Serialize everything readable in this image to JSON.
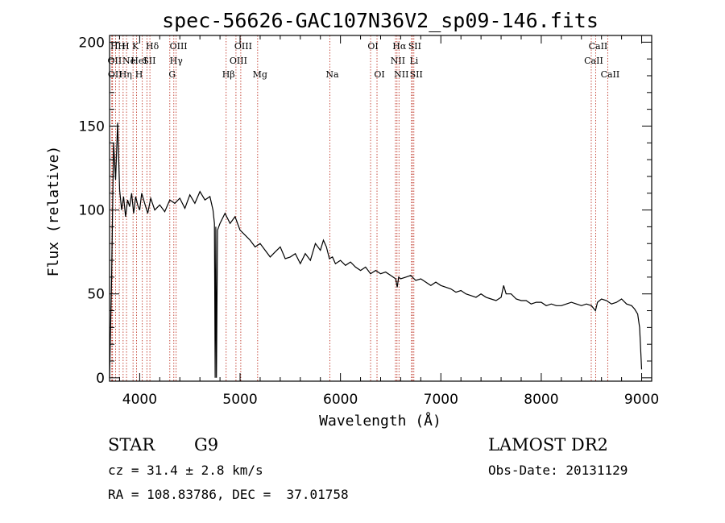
{
  "chart_data": {
    "type": "line",
    "title": "spec-56626-GAC107N36V2_sp09-146.fits",
    "xlabel": "Wavelength (Å)",
    "ylabel": "Flux (relative)",
    "xlim": [
      3700,
      9100
    ],
    "ylim": [
      -2,
      204
    ],
    "x_ticks": [
      4000,
      5000,
      6000,
      7000,
      8000,
      9000
    ],
    "y_ticks": [
      0,
      50,
      100,
      150,
      200
    ],
    "grid": false,
    "series": [
      {
        "name": "spectrum",
        "x": [
          3700,
          3720,
          3740,
          3760,
          3780,
          3800,
          3820,
          3840,
          3860,
          3880,
          3900,
          3920,
          3940,
          3960,
          3980,
          4000,
          4020,
          4050,
          4080,
          4110,
          4150,
          4200,
          4250,
          4300,
          4350,
          4400,
          4450,
          4500,
          4550,
          4600,
          4650,
          4700,
          4730,
          4745,
          4752,
          4758,
          4765,
          4775,
          4800,
          4850,
          4900,
          4950,
          5000,
          5050,
          5100,
          5150,
          5200,
          5250,
          5300,
          5350,
          5400,
          5450,
          5500,
          5550,
          5600,
          5650,
          5700,
          5750,
          5800,
          5830,
          5860,
          5890,
          5920,
          5950,
          6000,
          6050,
          6100,
          6150,
          6200,
          6250,
          6300,
          6350,
          6400,
          6450,
          6500,
          6550,
          6565,
          6580,
          6600,
          6650,
          6700,
          6750,
          6800,
          6850,
          6900,
          6950,
          7000,
          7050,
          7100,
          7150,
          7200,
          7250,
          7300,
          7350,
          7400,
          7450,
          7500,
          7550,
          7600,
          7625,
          7650,
          7700,
          7750,
          7800,
          7850,
          7900,
          7950,
          8000,
          8050,
          8100,
          8150,
          8200,
          8250,
          8300,
          8350,
          8400,
          8450,
          8500,
          8540,
          8560,
          8600,
          8650,
          8700,
          8750,
          8800,
          8850,
          8900,
          8930,
          8960,
          8980,
          9000
        ],
        "y": [
          0,
          58,
          140,
          118,
          152,
          112,
          100,
          108,
          96,
          106,
          102,
          110,
          98,
          108,
          103,
          100,
          110,
          104,
          98,
          107,
          100,
          103,
          99,
          106,
          104,
          107,
          101,
          109,
          104,
          111,
          106,
          108,
          100,
          92,
          0,
          90,
          0,
          88,
          92,
          98,
          92,
          96,
          88,
          85,
          82,
          78,
          80,
          76,
          72,
          75,
          78,
          71,
          72,
          74,
          68,
          74,
          70,
          80,
          76,
          82,
          78,
          71,
          72,
          68,
          70,
          67,
          69,
          66,
          64,
          66,
          62,
          64,
          62,
          63,
          61,
          59,
          54,
          60,
          59,
          60,
          61,
          58,
          59,
          57,
          55,
          57,
          55,
          54,
          53,
          51,
          52,
          50,
          49,
          48,
          50,
          48,
          47,
          46,
          48,
          55,
          50,
          50,
          47,
          46,
          46,
          44,
          45,
          45,
          43,
          44,
          43,
          43,
          44,
          45,
          44,
          43,
          44,
          43,
          40,
          45,
          47,
          46,
          44,
          45,
          47,
          44,
          43,
          41,
          38,
          30,
          5
        ]
      }
    ],
    "lines": [
      {
        "wl": 3722,
        "label": "H"
      },
      {
        "wl": 3727,
        "label": "OII"
      },
      {
        "wl": 3730,
        "label": "OII"
      },
      {
        "wl": 3760,
        "label": "H"
      },
      {
        "wl": 3797,
        "label": "H"
      },
      {
        "wl": 3835,
        "label": "Hη"
      },
      {
        "wl": 3869,
        "label": "NeIII"
      },
      {
        "wl": 3934,
        "label": "K"
      },
      {
        "wl": 3969,
        "label": "H"
      },
      {
        "wl": 4026,
        "label": "HeI"
      },
      {
        "wl": 4072,
        "label": "SII"
      },
      {
        "wl": 4102,
        "label": "Hδ"
      },
      {
        "wl": 4300,
        "label": "G"
      },
      {
        "wl": 4340,
        "label": "Hγ"
      },
      {
        "wl": 4363,
        "label": "OIII"
      },
      {
        "wl": 4861,
        "label": "Hβ"
      },
      {
        "wl": 4959,
        "label": "OIII"
      },
      {
        "wl": 5007,
        "label": "OIII"
      },
      {
        "wl": 5175,
        "label": "Mg"
      },
      {
        "wl": 5894,
        "label": "Na"
      },
      {
        "wl": 6300,
        "label": "OI"
      },
      {
        "wl": 6364,
        "label": "OI"
      },
      {
        "wl": 6548,
        "label": "NII"
      },
      {
        "wl": 6563,
        "label": "Hα"
      },
      {
        "wl": 6583,
        "label": "NII"
      },
      {
        "wl": 6708,
        "label": "Li"
      },
      {
        "wl": 6716,
        "label": "SII"
      },
      {
        "wl": 6731,
        "label": "SII"
      },
      {
        "wl": 8498,
        "label": "CaII"
      },
      {
        "wl": 8542,
        "label": "CaII"
      },
      {
        "wl": 8662,
        "label": "CaII"
      }
    ],
    "line_label_rows": [
      [
        {
          "wl": 3722,
          "text": "H"
        },
        {
          "wl": 3797,
          "text": "H"
        },
        {
          "wl": 3835,
          "text": "H"
        },
        {
          "wl": 3934,
          "text": "K"
        },
        {
          "wl": 4102,
          "text": "Hδ"
        },
        {
          "wl": 4363,
          "text": "OIII"
        },
        {
          "wl": 5007,
          "text": "OIII"
        },
        {
          "wl": 6300,
          "text": "OI"
        },
        {
          "wl": 6563,
          "text": "Hα"
        },
        {
          "wl": 6716,
          "text": "SII"
        },
        {
          "wl": 8542,
          "text": "CaII"
        }
      ],
      [
        {
          "wl": 3727,
          "text": "OII"
        },
        {
          "wl": 3869,
          "text": "Ne"
        },
        {
          "wl": 3969,
          "text": "HeI"
        },
        {
          "wl": 4072,
          "text": "SII"
        },
        {
          "wl": 4340,
          "text": "Hγ"
        },
        {
          "wl": 4959,
          "text": "OIII"
        },
        {
          "wl": 6548,
          "text": "NII"
        },
        {
          "wl": 6708,
          "text": "Li"
        },
        {
          "wl": 8498,
          "text": "CaII"
        }
      ],
      [
        {
          "wl": 3730,
          "text": "OII"
        },
        {
          "wl": 3835,
          "text": "Hη"
        },
        {
          "wl": 3969,
          "text": "H"
        },
        {
          "wl": 4300,
          "text": "G"
        },
        {
          "wl": 4861,
          "text": "Hβ"
        },
        {
          "wl": 5175,
          "text": "Mg"
        },
        {
          "wl": 5894,
          "text": "Na"
        },
        {
          "wl": 6364,
          "text": "OI"
        },
        {
          "wl": 6583,
          "text": "NII"
        },
        {
          "wl": 6731,
          "text": "SII"
        },
        {
          "wl": 8662,
          "text": "CaII"
        }
      ]
    ]
  },
  "info": {
    "object_class": "STAR",
    "subclass": "G9",
    "survey": "LAMOST DR2",
    "cz": "cz = 31.4 ± 2.8 km/s",
    "obs_date": "Obs-Date: 20131129",
    "coords": "RA = 108.83786, DEC =  37.01758"
  }
}
